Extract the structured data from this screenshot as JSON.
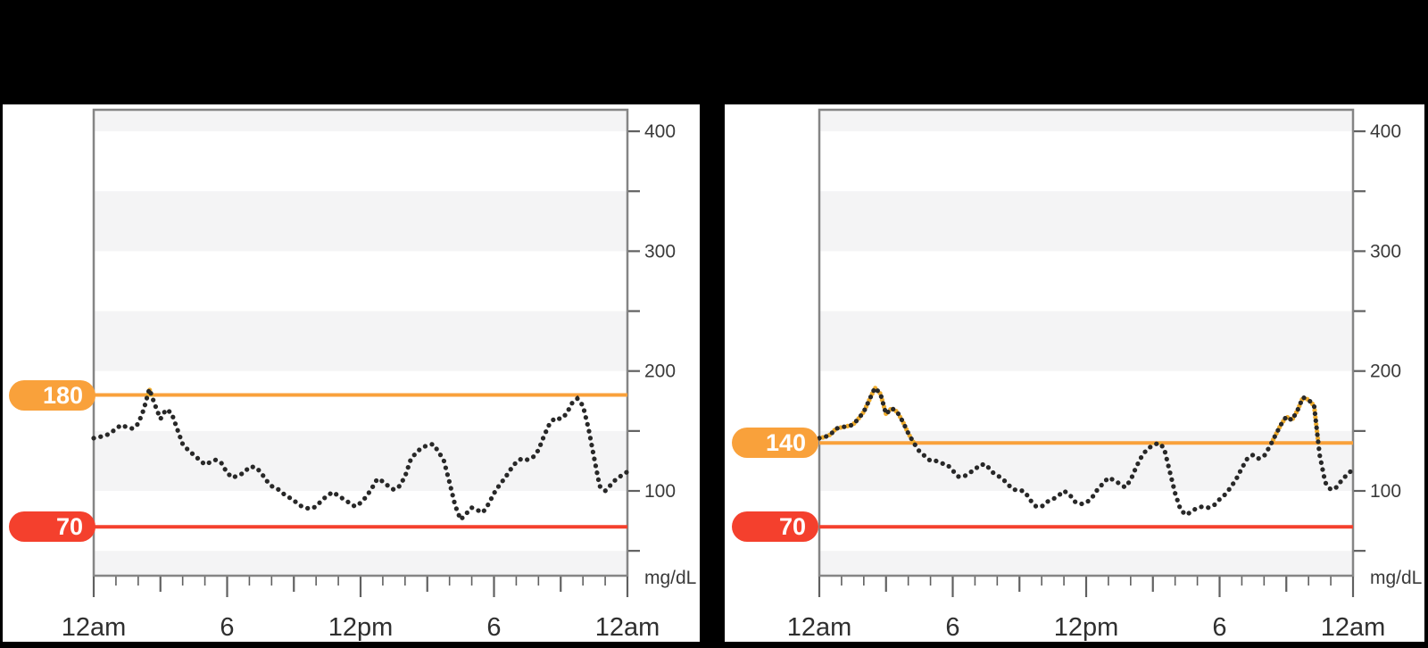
{
  "style": {
    "background": "#000000",
    "panel": "#ffffff",
    "stripe": "#f4f4f5",
    "plot_border": "#858585",
    "tick": "#606060",
    "axis_label": "#3a3a3a",
    "time_label": "#2f2f2f",
    "trace": "#282828",
    "trace_above_threshold": "#f0ad2e",
    "threshold_high_color": "#f9a13b",
    "threshold_low_color": "#f4402d",
    "badge_text": "#ffffff"
  },
  "chart_data": [
    {
      "type": "line",
      "ylabel": "mg/dL",
      "ylim": [
        29,
        418
      ],
      "y_ticks_labeled": [
        100,
        200,
        300,
        400
      ],
      "y_ticks_minor": [
        50,
        150,
        250,
        350
      ],
      "x_unit": "hours",
      "hours_span": 24,
      "x_ticklabels": [
        "12am",
        "6",
        "12pm",
        "6",
        "12am"
      ],
      "x_ticklabel_hours": [
        0,
        6,
        12,
        18,
        24
      ],
      "threshold_high": {
        "value": 180,
        "label": "180"
      },
      "threshold_low": {
        "value": 70,
        "label": "70"
      },
      "sample_interval_minutes": 15,
      "values_mg_dl": [
        144,
        145,
        146,
        148,
        152,
        155,
        153,
        152,
        156,
        168,
        185,
        172,
        160,
        168,
        165,
        152,
        139,
        134,
        130,
        126,
        122,
        124,
        126,
        123,
        115,
        111,
        113,
        115,
        120,
        120,
        116,
        109,
        104,
        102,
        98,
        95,
        92,
        88,
        86,
        85,
        87,
        92,
        96,
        99,
        96,
        93,
        90,
        87,
        90,
        95,
        102,
        110,
        108,
        104,
        101,
        104,
        112,
        126,
        132,
        136,
        138,
        139,
        133,
        125,
        107,
        88,
        76,
        81,
        86,
        84,
        82,
        89,
        98,
        105,
        111,
        118,
        124,
        127,
        126,
        128,
        134,
        146,
        156,
        161,
        160,
        164,
        173,
        177,
        171,
        152,
        128,
        104,
        100,
        105,
        110,
        113,
        116
      ]
    },
    {
      "type": "line",
      "ylabel": "mg/dL",
      "ylim": [
        29,
        418
      ],
      "y_ticks_labeled": [
        100,
        200,
        300,
        400
      ],
      "y_ticks_minor": [
        50,
        150,
        250,
        350
      ],
      "x_unit": "hours",
      "hours_span": 24,
      "x_ticklabels": [
        "12am",
        "6",
        "12pm",
        "6",
        "12am"
      ],
      "x_ticklabel_hours": [
        0,
        6,
        12,
        18,
        24
      ],
      "threshold_high": {
        "value": 140,
        "label": "140"
      },
      "threshold_low": {
        "value": 70,
        "label": "70"
      },
      "sample_interval_minutes": 15,
      "values_mg_dl": [
        144,
        145,
        147,
        152,
        153,
        154,
        155,
        160,
        166,
        176,
        186,
        181,
        164,
        169,
        166,
        158,
        148,
        140,
        133,
        129,
        125,
        125,
        123,
        122,
        117,
        112,
        112,
        115,
        118,
        122,
        122,
        116,
        113,
        110,
        105,
        101,
        101,
        99,
        92,
        87,
        87,
        91,
        93,
        96,
        100,
        97,
        91,
        89,
        90,
        94,
        101,
        106,
        111,
        109,
        106,
        103,
        109,
        120,
        129,
        135,
        138,
        140,
        136,
        117,
        98,
        84,
        80,
        83,
        86,
        87,
        86,
        88,
        93,
        97,
        103,
        110,
        119,
        127,
        130,
        127,
        129,
        137,
        146,
        155,
        162,
        159,
        167,
        178,
        176,
        171,
        130,
        107,
        101,
        103,
        109,
        114,
        118
      ]
    }
  ]
}
